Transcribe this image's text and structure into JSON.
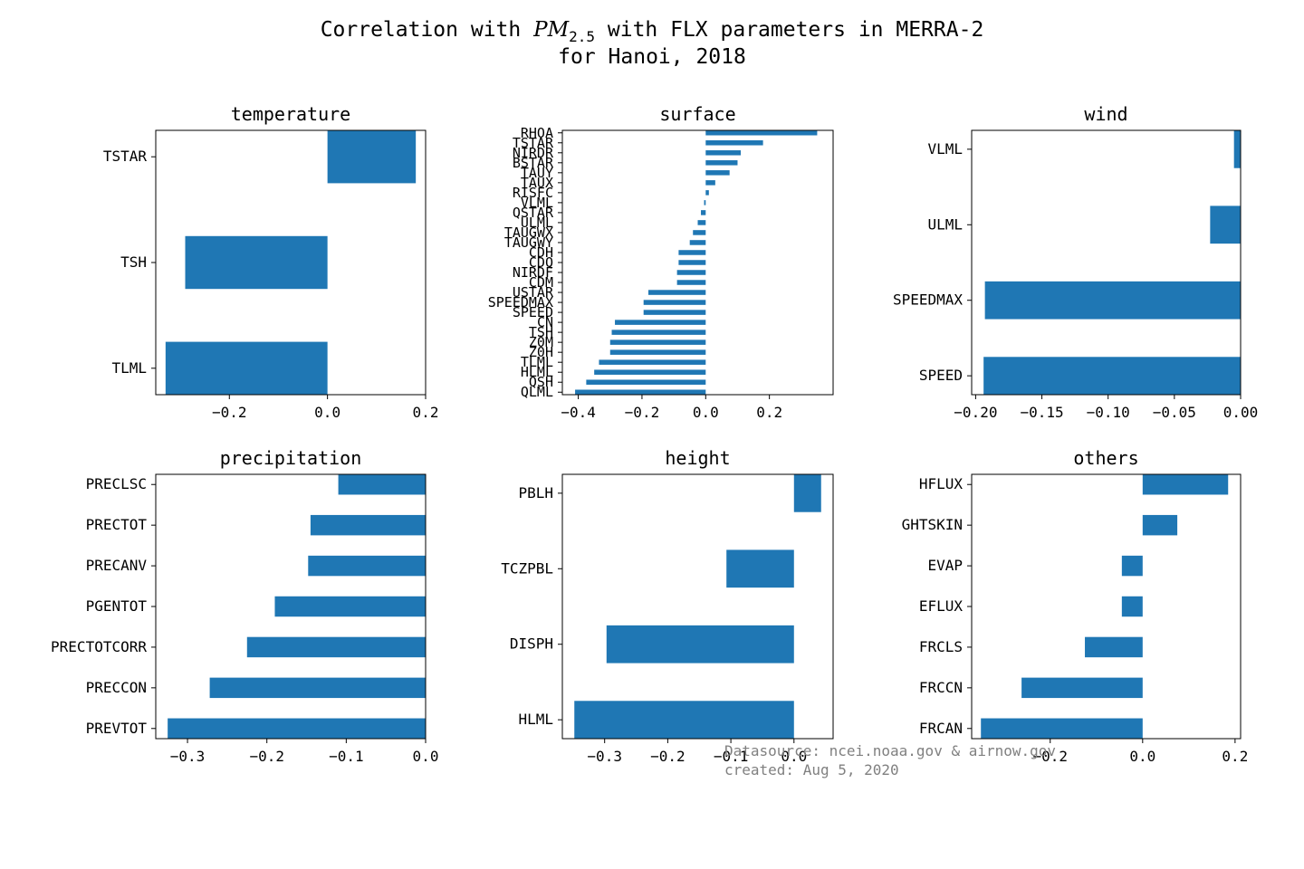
{
  "figure": {
    "title_prefix": "Correlation with ",
    "title_var": "PM",
    "title_sub": "2.5",
    "title_suffix": " with FLX parameters in MERRA-2",
    "title_line2": "for Hanoi, 2018",
    "footer_line1": "Datasource: ncei.noaa.gov & airnow.gov",
    "footer_line2": "created: Aug 5, 2020",
    "bar_color": "#1f77b4"
  },
  "chart_data": [
    {
      "type": "bar",
      "orientation": "horizontal",
      "title": "temperature",
      "categories": [
        "TSTAR",
        "TSH",
        "TLML"
      ],
      "values": [
        0.18,
        -0.29,
        -0.33
      ],
      "xlim": [
        -0.35,
        0.2
      ],
      "xticks": [
        -0.2,
        0.0,
        0.2
      ],
      "xtick_labels": [
        "−0.2",
        "0.0",
        "0.2"
      ]
    },
    {
      "type": "bar",
      "orientation": "horizontal",
      "title": "surface",
      "categories": [
        "RHOA",
        "TSTAR",
        "NIRDR",
        "BSTAR",
        "TAUY",
        "TAUX",
        "RISFC",
        "VLML",
        "QSTAR",
        "ULML",
        "TAUGWX",
        "TAUGWY",
        "CDH",
        "CDQ",
        "NIRDF",
        "CDM",
        "USTAR",
        "SPEEDMAX",
        "SPEED",
        "CN",
        "TSH",
        "Z0M",
        "Z0H",
        "TLML",
        "HLML",
        "QSH",
        "QLML"
      ],
      "values": [
        0.35,
        0.18,
        0.11,
        0.1,
        0.075,
        0.03,
        0.01,
        -0.005,
        -0.015,
        -0.025,
        -0.04,
        -0.05,
        -0.085,
        -0.085,
        -0.09,
        -0.09,
        -0.18,
        -0.195,
        -0.195,
        -0.285,
        -0.295,
        -0.3,
        -0.3,
        -0.335,
        -0.35,
        -0.375,
        -0.41
      ],
      "xlim": [
        -0.45,
        0.4
      ],
      "xticks": [
        -0.4,
        -0.2,
        0.0,
        0.2
      ],
      "xtick_labels": [
        "−0.4",
        "−0.2",
        "0.0",
        "0.2"
      ]
    },
    {
      "type": "bar",
      "orientation": "horizontal",
      "title": "wind",
      "categories": [
        "VLML",
        "ULML",
        "SPEEDMAX",
        "SPEED"
      ],
      "values": [
        -0.005,
        -0.023,
        -0.193,
        -0.194
      ],
      "xlim": [
        -0.203,
        0.0
      ],
      "xticks": [
        -0.2,
        -0.15,
        -0.1,
        -0.05,
        0.0
      ],
      "xtick_labels": [
        "−0.20",
        "−0.15",
        "−0.10",
        "−0.05",
        "0.00"
      ]
    },
    {
      "type": "bar",
      "orientation": "horizontal",
      "title": "precipitation",
      "categories": [
        "PRECLSC",
        "PRECTOT",
        "PRECANV",
        "PGENTOT",
        "PRECTOTCORR",
        "PRECCON",
        "PREVTOT"
      ],
      "values": [
        -0.11,
        -0.145,
        -0.148,
        -0.19,
        -0.225,
        -0.272,
        -0.325
      ],
      "xlim": [
        -0.34,
        0.0
      ],
      "xticks": [
        -0.3,
        -0.2,
        -0.1,
        0.0
      ],
      "xtick_labels": [
        "−0.3",
        "−0.2",
        "−0.1",
        "0.0"
      ]
    },
    {
      "type": "bar",
      "orientation": "horizontal",
      "title": "height",
      "categories": [
        "PBLH",
        "TCZPBL",
        "DISPH",
        "HLML"
      ],
      "values": [
        0.043,
        -0.107,
        -0.297,
        -0.348
      ],
      "xlim": [
        -0.367,
        0.062
      ],
      "xticks": [
        -0.3,
        -0.2,
        -0.1,
        0.0
      ],
      "xtick_labels": [
        "−0.3",
        "−0.2",
        "−0.1",
        "0.0"
      ]
    },
    {
      "type": "bar",
      "orientation": "horizontal",
      "title": "others",
      "categories": [
        "HFLUX",
        "GHTSKIN",
        "EVAP",
        "EFLUX",
        "FRCLS",
        "FRCCN",
        "FRCAN"
      ],
      "values": [
        0.185,
        0.075,
        -0.045,
        -0.045,
        -0.125,
        -0.262,
        -0.35
      ],
      "xlim": [
        -0.37,
        0.212
      ],
      "xticks": [
        -0.2,
        0.0,
        0.2
      ],
      "xtick_labels": [
        "−0.2",
        "0.0",
        "0.2"
      ]
    }
  ]
}
